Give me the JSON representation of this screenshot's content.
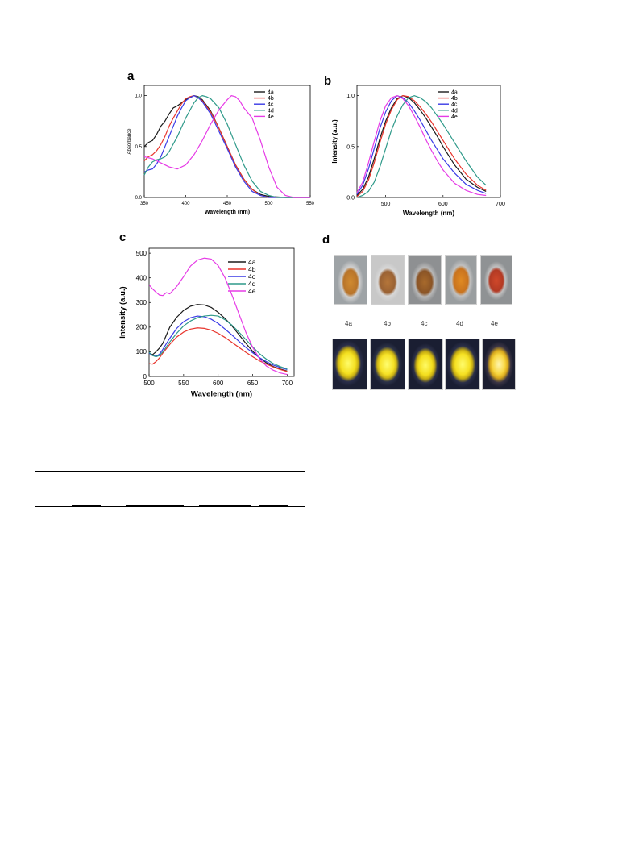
{
  "figure": {
    "panel_letters": [
      "a",
      "b",
      "c",
      "d"
    ],
    "legend_labels": [
      "4a",
      "4b",
      "4c",
      "4d",
      "4e"
    ],
    "series_colors": [
      "#1a1a1a",
      "#e8342c",
      "#3a3ae6",
      "#2f9a8a",
      "#e63be6"
    ],
    "photo_labels": [
      "4a",
      "4b",
      "4c",
      "4d",
      "4e"
    ]
  },
  "chart_data": [
    {
      "id": "a",
      "type": "line",
      "xlabel": "Wavelength (nm)",
      "ylabel": "Absorbance",
      "xlim": [
        350,
        550
      ],
      "ylim": [
        0,
        1.1
      ],
      "xticks": [
        "350",
        "400",
        "450",
        "500",
        "550"
      ],
      "yticks": [
        "0.0",
        "0.5",
        "1.0"
      ],
      "ytick_values": [
        0,
        0.5,
        1.0
      ],
      "xtick_values": [
        350,
        400,
        450,
        500,
        550
      ],
      "series": [
        {
          "name": "4a",
          "x": [
            350,
            355,
            360,
            365,
            370,
            375,
            380,
            385,
            390,
            395,
            400,
            405,
            410,
            415,
            420,
            430,
            440,
            450,
            460,
            470,
            480,
            490,
            500,
            520,
            550
          ],
          "y": [
            0.5,
            0.54,
            0.56,
            0.62,
            0.7,
            0.75,
            0.82,
            0.88,
            0.9,
            0.93,
            0.96,
            0.98,
            1.0,
            0.99,
            0.96,
            0.85,
            0.68,
            0.5,
            0.32,
            0.18,
            0.08,
            0.03,
            0.01,
            0.0,
            0.0
          ]
        },
        {
          "name": "4b",
          "x": [
            350,
            355,
            360,
            365,
            370,
            375,
            380,
            385,
            390,
            395,
            400,
            405,
            410,
            415,
            420,
            430,
            440,
            450,
            460,
            470,
            480,
            490,
            500,
            550
          ],
          "y": [
            0.36,
            0.4,
            0.42,
            0.46,
            0.52,
            0.6,
            0.7,
            0.78,
            0.85,
            0.92,
            0.97,
            0.99,
            1.0,
            0.98,
            0.95,
            0.84,
            0.68,
            0.5,
            0.32,
            0.18,
            0.08,
            0.02,
            0.0,
            0.0
          ]
        },
        {
          "name": "4c",
          "x": [
            350,
            355,
            360,
            365,
            370,
            375,
            380,
            385,
            390,
            395,
            400,
            405,
            410,
            415,
            420,
            430,
            440,
            450,
            460,
            470,
            480,
            490,
            500,
            550
          ],
          "y": [
            0.25,
            0.27,
            0.28,
            0.33,
            0.4,
            0.5,
            0.6,
            0.7,
            0.8,
            0.88,
            0.95,
            0.98,
            1.0,
            0.98,
            0.94,
            0.82,
            0.65,
            0.48,
            0.3,
            0.16,
            0.06,
            0.02,
            0.0,
            0.0
          ]
        },
        {
          "name": "4d",
          "x": [
            350,
            355,
            360,
            365,
            370,
            375,
            380,
            390,
            400,
            410,
            415,
            420,
            425,
            430,
            440,
            450,
            460,
            470,
            480,
            490,
            500,
            510,
            550
          ],
          "y": [
            0.22,
            0.3,
            0.35,
            0.37,
            0.38,
            0.4,
            0.45,
            0.6,
            0.78,
            0.93,
            0.98,
            1.0,
            0.99,
            0.97,
            0.88,
            0.72,
            0.52,
            0.32,
            0.16,
            0.06,
            0.02,
            0.0,
            0.0
          ]
        },
        {
          "name": "4e",
          "x": [
            350,
            360,
            370,
            380,
            390,
            400,
            410,
            420,
            430,
            440,
            450,
            455,
            460,
            465,
            470,
            480,
            490,
            500,
            510,
            520,
            530,
            550
          ],
          "y": [
            0.4,
            0.38,
            0.34,
            0.3,
            0.28,
            0.32,
            0.42,
            0.56,
            0.72,
            0.86,
            0.96,
            1.0,
            0.99,
            0.95,
            0.88,
            0.78,
            0.56,
            0.3,
            0.1,
            0.02,
            0.0,
            0.0
          ]
        }
      ],
      "legend": "top-right"
    },
    {
      "id": "b",
      "type": "line",
      "xlabel": "Wavelength (nm)",
      "ylabel": "Intensity (a.u.)",
      "xlim": [
        450,
        700
      ],
      "ylim": [
        0,
        1.1
      ],
      "xticks": [
        "500",
        "600",
        "700"
      ],
      "xtick_values": [
        500,
        600,
        700
      ],
      "yticks": [
        "0.0",
        "0.5",
        "1.0"
      ],
      "ytick_values": [
        0,
        0.5,
        1.0
      ],
      "series": [
        {
          "name": "4a",
          "x": [
            450,
            460,
            470,
            480,
            490,
            500,
            510,
            520,
            530,
            540,
            550,
            560,
            570,
            580,
            590,
            600,
            620,
            640,
            660,
            675
          ],
          "y": [
            0.02,
            0.08,
            0.2,
            0.38,
            0.58,
            0.75,
            0.88,
            0.97,
            1.0,
            0.98,
            0.93,
            0.86,
            0.78,
            0.69,
            0.6,
            0.5,
            0.32,
            0.18,
            0.1,
            0.06
          ]
        },
        {
          "name": "4b",
          "x": [
            450,
            460,
            470,
            480,
            490,
            500,
            510,
            520,
            530,
            540,
            550,
            560,
            570,
            580,
            590,
            600,
            620,
            640,
            660,
            675
          ],
          "y": [
            0.01,
            0.06,
            0.17,
            0.34,
            0.54,
            0.72,
            0.86,
            0.96,
            1.0,
            0.99,
            0.95,
            0.89,
            0.82,
            0.74,
            0.65,
            0.56,
            0.38,
            0.23,
            0.12,
            0.07
          ]
        },
        {
          "name": "4c",
          "x": [
            450,
            460,
            470,
            480,
            490,
            500,
            510,
            520,
            530,
            540,
            550,
            560,
            570,
            580,
            590,
            600,
            620,
            640,
            660,
            675
          ],
          "y": [
            0.03,
            0.12,
            0.28,
            0.48,
            0.68,
            0.84,
            0.95,
            1.0,
            0.98,
            0.93,
            0.85,
            0.76,
            0.66,
            0.56,
            0.47,
            0.38,
            0.24,
            0.13,
            0.07,
            0.04
          ]
        },
        {
          "name": "4d",
          "x": [
            450,
            460,
            470,
            480,
            490,
            500,
            510,
            520,
            530,
            540,
            550,
            560,
            570,
            580,
            590,
            600,
            620,
            640,
            660,
            675
          ],
          "y": [
            0.0,
            0.02,
            0.06,
            0.15,
            0.3,
            0.48,
            0.66,
            0.8,
            0.91,
            0.98,
            1.0,
            0.98,
            0.94,
            0.88,
            0.8,
            0.72,
            0.54,
            0.36,
            0.2,
            0.12
          ]
        },
        {
          "name": "4e",
          "x": [
            450,
            460,
            470,
            480,
            490,
            500,
            510,
            520,
            530,
            540,
            550,
            560,
            570,
            580,
            590,
            600,
            620,
            640,
            660,
            675
          ],
          "y": [
            0.05,
            0.15,
            0.34,
            0.55,
            0.75,
            0.9,
            0.98,
            1.0,
            0.97,
            0.9,
            0.8,
            0.69,
            0.57,
            0.46,
            0.36,
            0.27,
            0.14,
            0.07,
            0.03,
            0.02
          ]
        }
      ],
      "legend": "top-right"
    },
    {
      "id": "c",
      "type": "line",
      "xlabel": "Wavelength (nm)",
      "ylabel": "Intensity (a.u.)",
      "xlim": [
        500,
        710
      ],
      "ylim": [
        0,
        520
      ],
      "xticks": [
        "500",
        "550",
        "600",
        "650",
        "700"
      ],
      "xtick_values": [
        500,
        550,
        600,
        650,
        700
      ],
      "yticks": [
        "0",
        "100",
        "200",
        "300",
        "400",
        "500"
      ],
      "ytick_values": [
        0,
        100,
        200,
        300,
        400,
        500
      ],
      "series": [
        {
          "name": "4a",
          "x": [
            500,
            505,
            510,
            515,
            520,
            530,
            540,
            550,
            560,
            570,
            580,
            590,
            600,
            610,
            620,
            630,
            640,
            650,
            660,
            670,
            680,
            690,
            700
          ],
          "y": [
            95,
            88,
            100,
            115,
            135,
            200,
            240,
            268,
            285,
            292,
            290,
            280,
            260,
            235,
            205,
            170,
            135,
            102,
            75,
            55,
            40,
            30,
            22
          ]
        },
        {
          "name": "4b",
          "x": [
            500,
            505,
            510,
            515,
            520,
            530,
            540,
            550,
            560,
            570,
            580,
            590,
            600,
            610,
            620,
            630,
            640,
            650,
            660,
            670,
            680,
            690,
            700
          ],
          "y": [
            52,
            50,
            60,
            75,
            95,
            130,
            160,
            180,
            192,
            197,
            195,
            188,
            175,
            158,
            138,
            118,
            98,
            80,
            63,
            50,
            38,
            28,
            20
          ]
        },
        {
          "name": "4c",
          "x": [
            500,
            505,
            510,
            515,
            520,
            530,
            540,
            550,
            560,
            570,
            580,
            590,
            600,
            610,
            620,
            630,
            640,
            650,
            660,
            670,
            680,
            690,
            700
          ],
          "y": [
            95,
            85,
            82,
            90,
            110,
            155,
            195,
            222,
            238,
            245,
            242,
            232,
            215,
            192,
            168,
            143,
            118,
            96,
            76,
            60,
            46,
            36,
            28
          ]
        },
        {
          "name": "4d",
          "x": [
            500,
            505,
            510,
            515,
            520,
            530,
            540,
            550,
            560,
            570,
            580,
            590,
            600,
            610,
            620,
            630,
            640,
            650,
            660,
            670,
            680,
            690,
            700
          ],
          "y": [
            98,
            85,
            80,
            85,
            100,
            140,
            175,
            205,
            225,
            238,
            245,
            248,
            245,
            230,
            208,
            180,
            150,
            120,
            92,
            70,
            52,
            40,
            30
          ]
        },
        {
          "name": "4e",
          "x": [
            500,
            505,
            510,
            515,
            520,
            525,
            530,
            540,
            550,
            560,
            570,
            580,
            590,
            600,
            610,
            620,
            630,
            640,
            650,
            660,
            670,
            680,
            690,
            700
          ],
          "y": [
            372,
            355,
            342,
            330,
            328,
            340,
            335,
            365,
            405,
            448,
            472,
            480,
            476,
            450,
            400,
            330,
            255,
            180,
            118,
            72,
            42,
            25,
            14,
            8
          ]
        }
      ],
      "legend": "top-right"
    }
  ]
}
